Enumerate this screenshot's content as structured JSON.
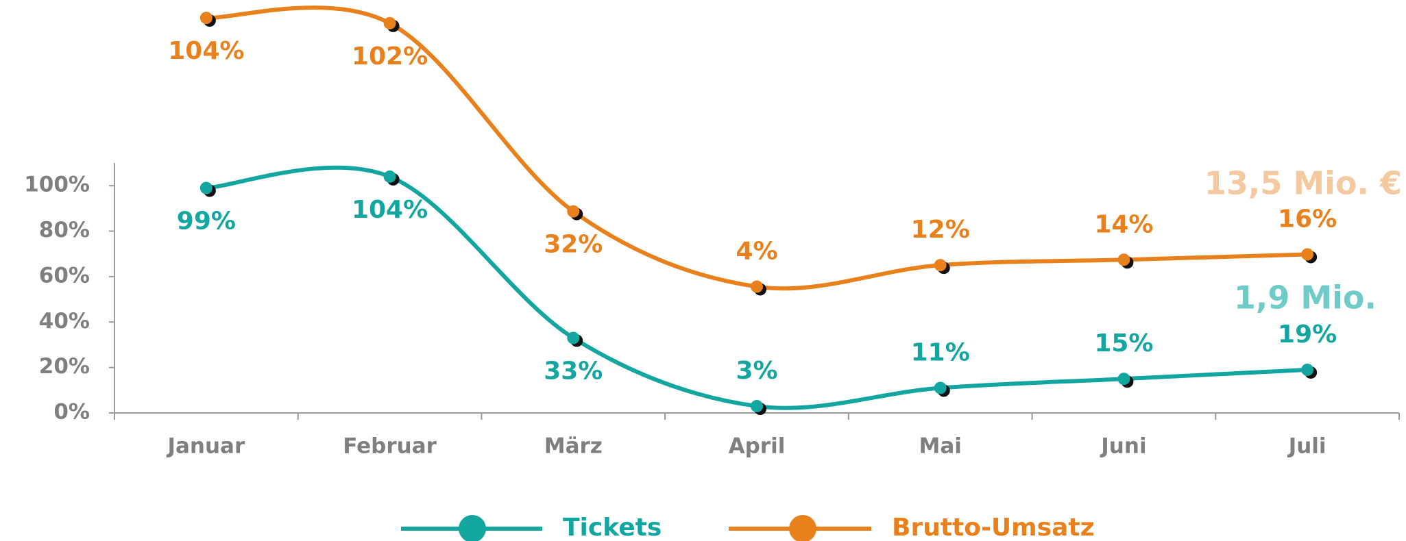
{
  "chart_data": {
    "type": "line",
    "categories": [
      "Januar",
      "Februar",
      "März",
      "April",
      "Mai",
      "Juni",
      "Juli"
    ],
    "series": [
      {
        "name": "Tickets",
        "color": "#13a6a1",
        "values": [
          99,
          104,
          33,
          3,
          11,
          15,
          19
        ],
        "value_labels": [
          "99%",
          "104%",
          "33%",
          "3%",
          "11%",
          "15%",
          "19%"
        ]
      },
      {
        "name": "Brutto-Umsatz",
        "color": "#e8801c",
        "axis": "y2",
        "values": [
          104,
          102,
          32,
          4,
          12,
          14,
          16
        ],
        "value_labels": [
          "104%",
          "102%",
          "32%",
          "4%",
          "12%",
          "14%",
          "16%"
        ]
      }
    ],
    "ylim": [
      0,
      110
    ],
    "yticks": [
      {
        "value": 0,
        "label": "0%"
      },
      {
        "value": 20,
        "label": "20%"
      },
      {
        "value": 40,
        "label": "40%"
      },
      {
        "value": 60,
        "label": "60%"
      },
      {
        "value": 80,
        "label": "80%"
      },
      {
        "value": 100,
        "label": "100%"
      }
    ],
    "y2lim": [
      -43,
      50
    ],
    "annotations": [
      {
        "text": "13,5 Mio. €",
        "color": "#f5c9a0"
      },
      {
        "text": "1,9 Mio.",
        "color": "#6ecbc8"
      }
    ],
    "legend": "bottom"
  }
}
